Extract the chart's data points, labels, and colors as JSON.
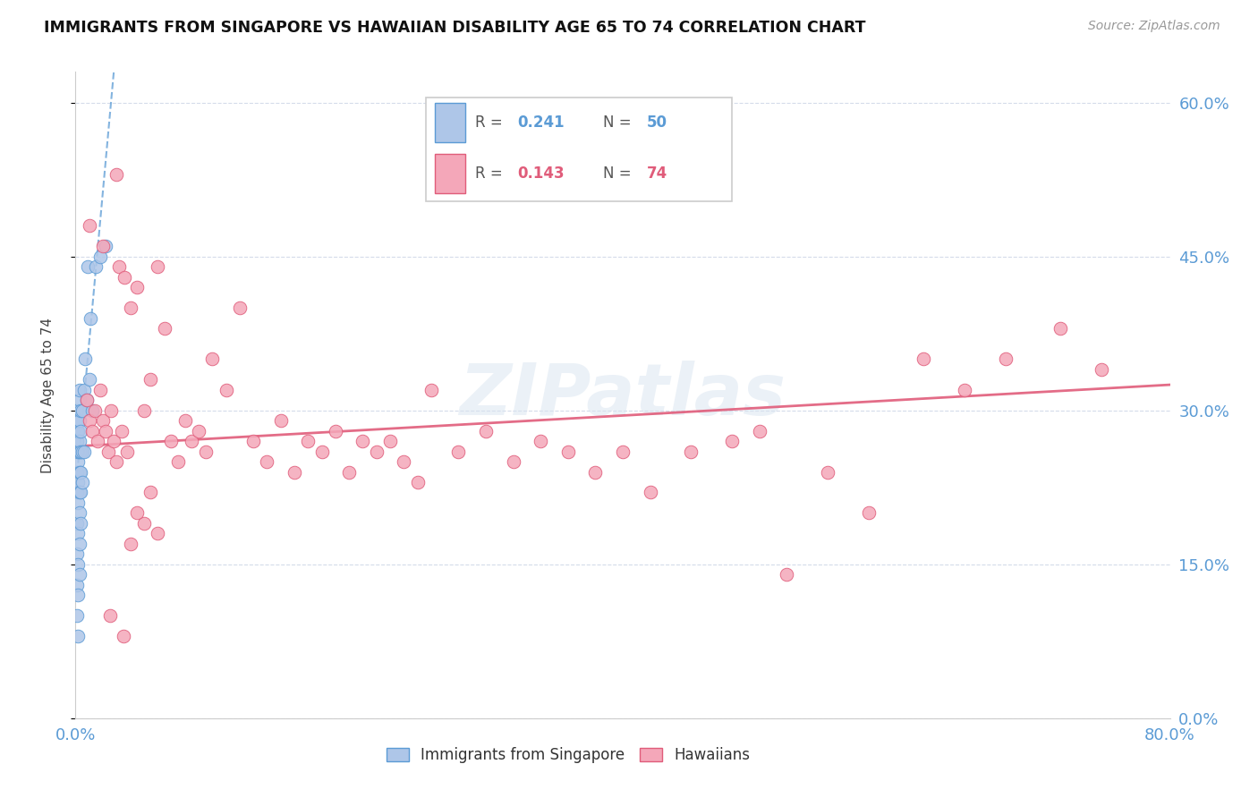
{
  "title": "IMMIGRANTS FROM SINGAPORE VS HAWAIIAN DISABILITY AGE 65 TO 74 CORRELATION CHART",
  "source": "Source: ZipAtlas.com",
  "ylabel": "Disability Age 65 to 74",
  "ytick_labels": [
    "0.0%",
    "15.0%",
    "30.0%",
    "45.0%",
    "60.0%"
  ],
  "ytick_values": [
    0.0,
    0.15,
    0.3,
    0.45,
    0.6
  ],
  "xlim": [
    0.0,
    0.8
  ],
  "ylim": [
    0.0,
    0.63
  ],
  "color_singapore": "#aec6e8",
  "color_hawaiian": "#f4a7b9",
  "color_trendline_singapore": "#5b9bd5",
  "color_trendline_hawaiian": "#e05c7a",
  "color_axis_labels": "#5b9bd5",
  "background_color": "#ffffff",
  "grid_color": "#d0d8e8",
  "watermark": "ZIPatlas",
  "singapore_x": [
    0.001,
    0.001,
    0.001,
    0.001,
    0.001,
    0.001,
    0.001,
    0.001,
    0.001,
    0.001,
    0.002,
    0.002,
    0.002,
    0.002,
    0.002,
    0.002,
    0.002,
    0.002,
    0.002,
    0.002,
    0.003,
    0.003,
    0.003,
    0.003,
    0.003,
    0.003,
    0.003,
    0.003,
    0.003,
    0.003,
    0.004,
    0.004,
    0.004,
    0.004,
    0.004,
    0.004,
    0.005,
    0.005,
    0.005,
    0.006,
    0.006,
    0.007,
    0.008,
    0.009,
    0.01,
    0.011,
    0.012,
    0.015,
    0.018,
    0.022
  ],
  "singapore_y": [
    0.1,
    0.13,
    0.16,
    0.19,
    0.22,
    0.24,
    0.26,
    0.27,
    0.28,
    0.3,
    0.08,
    0.12,
    0.15,
    0.18,
    0.21,
    0.23,
    0.25,
    0.26,
    0.28,
    0.29,
    0.14,
    0.17,
    0.2,
    0.22,
    0.24,
    0.26,
    0.27,
    0.29,
    0.31,
    0.32,
    0.19,
    0.22,
    0.24,
    0.26,
    0.28,
    0.3,
    0.23,
    0.26,
    0.3,
    0.26,
    0.32,
    0.35,
    0.31,
    0.44,
    0.33,
    0.39,
    0.3,
    0.44,
    0.45,
    0.46
  ],
  "hawaiian_x": [
    0.008,
    0.01,
    0.012,
    0.014,
    0.016,
    0.018,
    0.02,
    0.022,
    0.024,
    0.026,
    0.028,
    0.03,
    0.032,
    0.034,
    0.036,
    0.038,
    0.04,
    0.045,
    0.05,
    0.055,
    0.06,
    0.065,
    0.07,
    0.075,
    0.08,
    0.085,
    0.09,
    0.095,
    0.1,
    0.11,
    0.12,
    0.13,
    0.14,
    0.15,
    0.16,
    0.17,
    0.18,
    0.19,
    0.2,
    0.21,
    0.22,
    0.23,
    0.24,
    0.25,
    0.26,
    0.28,
    0.3,
    0.32,
    0.34,
    0.36,
    0.38,
    0.4,
    0.42,
    0.45,
    0.48,
    0.5,
    0.52,
    0.55,
    0.58,
    0.62,
    0.65,
    0.68,
    0.72,
    0.75,
    0.01,
    0.02,
    0.03,
    0.04,
    0.05,
    0.06,
    0.025,
    0.035,
    0.045,
    0.055
  ],
  "hawaiian_y": [
    0.31,
    0.29,
    0.28,
    0.3,
    0.27,
    0.32,
    0.29,
    0.28,
    0.26,
    0.3,
    0.27,
    0.25,
    0.44,
    0.28,
    0.43,
    0.26,
    0.4,
    0.42,
    0.3,
    0.33,
    0.44,
    0.38,
    0.27,
    0.25,
    0.29,
    0.27,
    0.28,
    0.26,
    0.35,
    0.32,
    0.4,
    0.27,
    0.25,
    0.29,
    0.24,
    0.27,
    0.26,
    0.28,
    0.24,
    0.27,
    0.26,
    0.27,
    0.25,
    0.23,
    0.32,
    0.26,
    0.28,
    0.25,
    0.27,
    0.26,
    0.24,
    0.26,
    0.22,
    0.26,
    0.27,
    0.28,
    0.14,
    0.24,
    0.2,
    0.35,
    0.32,
    0.35,
    0.38,
    0.34,
    0.48,
    0.46,
    0.53,
    0.17,
    0.19,
    0.18,
    0.1,
    0.08,
    0.2,
    0.22
  ],
  "sg_trend_x0": 0.0,
  "sg_trend_y0": 0.22,
  "sg_trend_x1": 0.028,
  "sg_trend_y1": 0.63,
  "hw_trend_x0": 0.0,
  "hw_trend_y0": 0.265,
  "hw_trend_x1": 0.8,
  "hw_trend_y1": 0.325
}
